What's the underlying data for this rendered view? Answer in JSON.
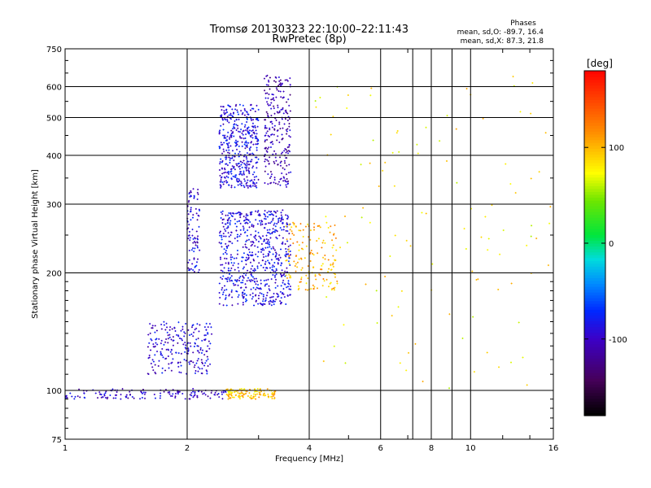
{
  "chart_data": {
    "type": "scatter",
    "title": "Tromsø 20130323 22:10:00–22:11:43",
    "subtitle": "RwPretec (8p)",
    "xlabel": "Frequency [MHz]",
    "ylabel": "Stationary phase Virtual Height [km]",
    "x_scale": "log",
    "y_scale": "log",
    "xlim": [
      1,
      16
    ],
    "ylim": [
      75,
      750
    ],
    "x_ticks": [
      "1",
      "2",
      "4",
      "6",
      "8",
      "10",
      "16"
    ],
    "x_tick_values": [
      1,
      2,
      4,
      6,
      8,
      10,
      16
    ],
    "x_grid_values": [
      1,
      2,
      4,
      6,
      7.2,
      8,
      9,
      10,
      16
    ],
    "y_ticks": [
      "75",
      "100",
      "200",
      "300",
      "400",
      "500",
      "600",
      "750"
    ],
    "y_tick_values": [
      75,
      100,
      200,
      300,
      400,
      500,
      600,
      750
    ],
    "grid": true,
    "phases_box": {
      "heading": "Phases",
      "line1": "mean, sd,O: -89.7, 16.4",
      "line2": "mean, sd,X:  87.3, 21.8"
    },
    "colorbar": {
      "label": "[deg]",
      "range": [
        -180,
        180
      ],
      "ticks": [
        "100",
        "0",
        "-100"
      ],
      "tick_values": [
        100,
        0,
        -100
      ]
    },
    "series_clusters": [
      {
        "name": "O-trace lower",
        "x_range": [
          1.0,
          2.5
        ],
        "y_range": [
          95,
          101
        ],
        "phase": -100
      },
      {
        "name": "O-trace E-region slope",
        "x_range": [
          1.6,
          2.3
        ],
        "y_range": [
          110,
          150
        ],
        "phase": -95
      },
      {
        "name": "O-trace F1",
        "x_range": [
          2.0,
          2.15
        ],
        "y_range": [
          200,
          330
        ],
        "phase": -95
      },
      {
        "name": "O-trace F",
        "x_range": [
          2.4,
          3.6
        ],
        "y_range": [
          165,
          290
        ],
        "phase": -90
      },
      {
        "name": "O-trace F upper",
        "x_range": [
          2.4,
          3.0
        ],
        "y_range": [
          330,
          540
        ],
        "phase": -90
      },
      {
        "name": "O-trace F cusp",
        "x_range": [
          3.1,
          3.6
        ],
        "y_range": [
          330,
          650
        ],
        "phase": -110
      },
      {
        "name": "X-trace lower",
        "x_range": [
          2.5,
          3.3
        ],
        "y_range": [
          95,
          101
        ],
        "phase": 95
      },
      {
        "name": "X-trace F",
        "x_range": [
          3.5,
          4.7
        ],
        "y_range": [
          180,
          270
        ],
        "phase": 100
      },
      {
        "name": "scattered",
        "x_range": [
          4.0,
          16.0
        ],
        "y_range": [
          100,
          650
        ],
        "phase": 80
      }
    ]
  }
}
